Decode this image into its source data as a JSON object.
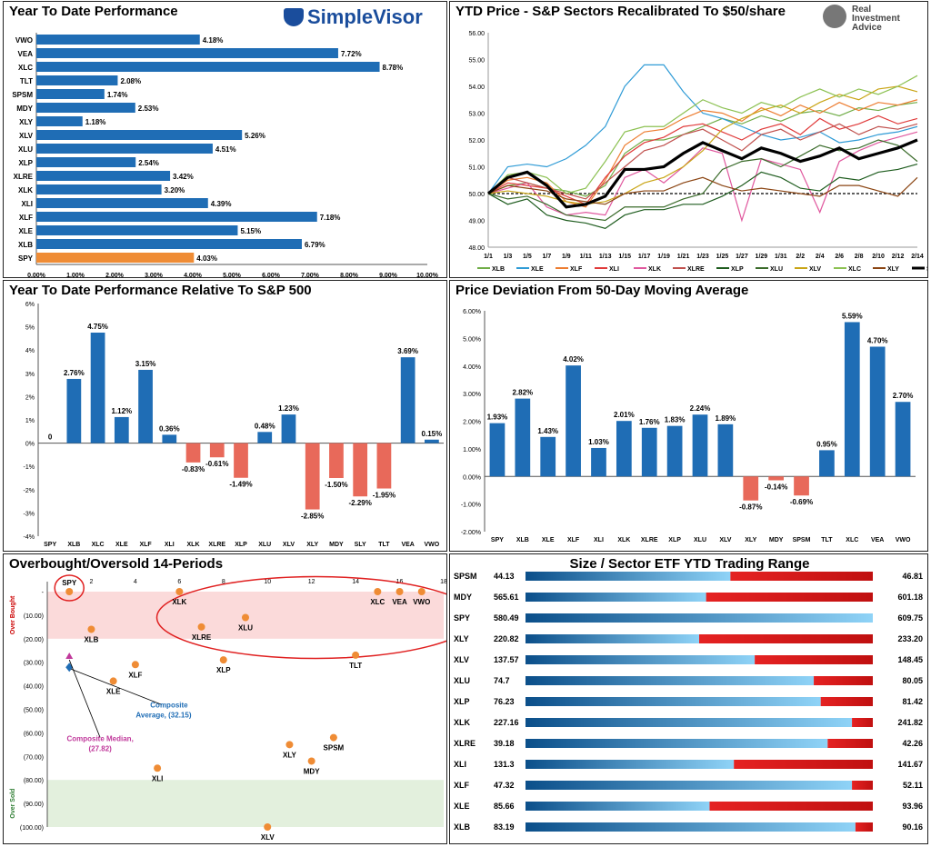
{
  "branding": {
    "simplevisor": "SimpleVisor",
    "ria": [
      "Real",
      "Investment",
      "Advice"
    ]
  },
  "chart_data": [
    {
      "id": "ytd",
      "type": "bar",
      "orientation": "horizontal",
      "title": "Year To Date Performance",
      "categories": [
        "VWO",
        "VEA",
        "XLC",
        "TLT",
        "SPSM",
        "MDY",
        "XLY",
        "XLV",
        "XLU",
        "XLP",
        "XLRE",
        "XLK",
        "XLI",
        "XLF",
        "XLE",
        "XLB",
        "SPY"
      ],
      "values": [
        4.18,
        7.72,
        8.78,
        2.08,
        1.74,
        2.53,
        1.18,
        5.26,
        4.51,
        2.54,
        3.42,
        3.2,
        4.39,
        7.18,
        5.15,
        6.79,
        4.03
      ],
      "labels": [
        "4.18%",
        "7.72%",
        "8.78%",
        "2.08%",
        "1.74%",
        "2.53%",
        "1.18%",
        "5.26%",
        "4.51%",
        "2.54%",
        "3.42%",
        "3.20%",
        "4.39%",
        "7.18%",
        "5.15%",
        "6.79%",
        "4.03%"
      ],
      "xlim": [
        0,
        10
      ],
      "ticks": [
        "0.00%",
        "1.00%",
        "2.00%",
        "3.00%",
        "4.00%",
        "5.00%",
        "6.00%",
        "7.00%",
        "8.00%",
        "9.00%",
        "10.00%"
      ],
      "colors": {
        "default": "#1f6db5",
        "SPY": "#ef8c35"
      }
    },
    {
      "id": "ytdprice",
      "type": "line",
      "title": "YTD Price - S&P Sectors Recalibrated To $50/share",
      "x": [
        "1/1",
        "1/3",
        "1/5",
        "1/7",
        "1/9",
        "1/11",
        "1/13",
        "1/15",
        "1/17",
        "1/19",
        "1/21",
        "1/23",
        "1/25",
        "1/27",
        "1/29",
        "1/31",
        "2/2",
        "2/4",
        "2/6",
        "2/8",
        "2/10",
        "2/12",
        "2/14"
      ],
      "ylim": [
        48,
        56
      ],
      "yticks": [
        "48.00",
        "49.00",
        "50.00",
        "51.00",
        "52.00",
        "53.00",
        "54.00",
        "55.00",
        "56.00"
      ],
      "baseline": 50,
      "series": [
        {
          "name": "XLB",
          "color": "#70ad47",
          "values": [
            50,
            50.3,
            50.4,
            50.2,
            50.1,
            49.9,
            50.3,
            51.5,
            52.0,
            52.0,
            52.2,
            52.5,
            52.8,
            52.6,
            52.9,
            52.7,
            53.0,
            53.1,
            52.9,
            53.2,
            53.1,
            53.3,
            53.4
          ]
        },
        {
          "name": "XLE",
          "color": "#2f9bd6",
          "values": [
            50,
            51.0,
            51.1,
            51.0,
            51.3,
            51.8,
            52.5,
            54.0,
            54.8,
            54.8,
            53.8,
            53.0,
            52.8,
            52.5,
            52.2,
            52.0,
            52.1,
            52.3,
            51.9,
            52.0,
            52.2,
            52.3,
            52.5
          ]
        },
        {
          "name": "XLF",
          "color": "#ed7d31",
          "values": [
            50,
            50.5,
            50.6,
            50.4,
            49.7,
            49.5,
            50.5,
            51.8,
            52.3,
            52.4,
            52.8,
            53.1,
            53.0,
            52.7,
            53.2,
            52.9,
            53.3,
            53.0,
            53.4,
            53.1,
            53.4,
            53.3,
            53.5
          ]
        },
        {
          "name": "XLI",
          "color": "#e03a3a",
          "values": [
            50,
            50.4,
            50.3,
            50.2,
            49.9,
            49.6,
            50.6,
            51.4,
            51.9,
            52.1,
            52.5,
            52.6,
            52.3,
            52.0,
            52.4,
            52.6,
            52.2,
            52.8,
            52.4,
            52.6,
            52.9,
            52.6,
            52.8
          ]
        },
        {
          "name": "XLK",
          "color": "#e0589e",
          "values": [
            50,
            50.2,
            50.4,
            49.5,
            49.2,
            49.3,
            49.2,
            50.6,
            50.9,
            50.4,
            51.0,
            51.7,
            51.5,
            49.0,
            51.3,
            51.1,
            50.9,
            49.3,
            51.2,
            51.6,
            51.9,
            52.1,
            52.3
          ]
        },
        {
          "name": "XLRE",
          "color": "#c0504d",
          "values": [
            50,
            50.6,
            50.4,
            50.2,
            50.0,
            49.8,
            50.4,
            51.0,
            51.6,
            51.8,
            52.2,
            52.4,
            52.0,
            51.6,
            52.2,
            52.4,
            52.0,
            52.3,
            52.6,
            52.2,
            52.5,
            52.4,
            52.6
          ]
        },
        {
          "name": "XLP",
          "color": "#1e5c1e",
          "values": [
            50,
            49.6,
            49.8,
            49.2,
            49.0,
            48.9,
            48.7,
            49.2,
            49.4,
            49.4,
            49.6,
            49.6,
            49.9,
            50.3,
            50.8,
            50.6,
            50.2,
            50.1,
            50.6,
            50.5,
            50.8,
            50.9,
            51.1
          ]
        },
        {
          "name": "XLU",
          "color": "#3a6b2a",
          "values": [
            50,
            49.8,
            49.9,
            49.6,
            49.2,
            49.1,
            49.0,
            49.5,
            49.5,
            49.5,
            49.8,
            50.0,
            50.9,
            51.2,
            51.3,
            51.0,
            51.4,
            51.8,
            51.6,
            51.7,
            52.0,
            51.8,
            51.2
          ]
        },
        {
          "name": "XLV",
          "color": "#c9a516",
          "values": [
            50,
            50.1,
            50.0,
            49.9,
            49.7,
            49.6,
            49.7,
            50.0,
            50.4,
            50.6,
            51.0,
            51.6,
            52.4,
            52.8,
            53.1,
            53.3,
            53.0,
            53.4,
            53.7,
            53.5,
            53.9,
            54.0,
            53.8
          ]
        },
        {
          "name": "XLC",
          "color": "#8cc152",
          "values": [
            50,
            50.7,
            50.8,
            50.6,
            50.0,
            50.2,
            51.2,
            52.3,
            52.5,
            52.5,
            53.0,
            53.5,
            53.2,
            53.0,
            53.4,
            53.2,
            53.6,
            53.9,
            53.6,
            53.9,
            53.7,
            54.0,
            54.4
          ]
        },
        {
          "name": "XLY",
          "color": "#8b4513",
          "values": [
            50,
            50.3,
            50.2,
            50.1,
            49.8,
            49.7,
            49.6,
            50.0,
            50.1,
            50.1,
            50.4,
            50.6,
            50.3,
            50.1,
            50.2,
            50.1,
            50.0,
            49.9,
            50.3,
            50.3,
            50.1,
            49.9,
            50.6
          ]
        },
        {
          "name": "SPY",
          "color": "#000000",
          "values": [
            50,
            50.6,
            50.8,
            50.3,
            49.5,
            49.6,
            49.9,
            50.9,
            50.9,
            51.0,
            51.5,
            51.9,
            51.6,
            51.3,
            51.7,
            51.5,
            51.2,
            51.4,
            51.7,
            51.3,
            51.5,
            51.7,
            52.0
          ]
        }
      ]
    },
    {
      "id": "relative",
      "type": "bar",
      "title": "Year To Date Performance Relative To S&P 500",
      "categories": [
        "SPY",
        "XLB",
        "XLC",
        "XLE",
        "XLF",
        "XLI",
        "XLK",
        "XLRE",
        "XLP",
        "XLU",
        "XLV",
        "XLY",
        "MDY",
        "SLY",
        "TLT",
        "VEA",
        "VWO"
      ],
      "values": [
        0,
        2.76,
        4.75,
        1.12,
        3.15,
        0.36,
        -0.83,
        -0.61,
        -1.49,
        0.48,
        1.23,
        -2.85,
        -1.5,
        -2.29,
        -1.95,
        3.69,
        0.15
      ],
      "labels": [
        "0",
        "2.76%",
        "4.75%",
        "1.12%",
        "3.15%",
        "0.36%",
        "-0.83%",
        "-0.61%",
        "-1.49%",
        "0.48%",
        "1.23%",
        "-2.85%",
        "-1.50%",
        "-2.29%",
        "-1.95%",
        "3.69%",
        "0.15%"
      ],
      "ylim": [
        -4,
        6
      ],
      "yticks": [
        "-4%",
        "-3%",
        "-2%",
        "-1%",
        "0%",
        "1%",
        "2%",
        "3%",
        "4%",
        "5%",
        "6%"
      ],
      "colors": {
        "positive": "#1f6db5",
        "negative": "#e8695a"
      }
    },
    {
      "id": "deviation",
      "type": "bar",
      "title": "Price Deviation From 50-Day Moving Average",
      "categories": [
        "SPY",
        "XLB",
        "XLE",
        "XLF",
        "XLI",
        "XLK",
        "XLRE",
        "XLP",
        "XLU",
        "XLV",
        "XLY",
        "MDY",
        "SPSM",
        "TLT",
        "XLC",
        "VEA",
        "VWO"
      ],
      "values": [
        1.93,
        2.82,
        1.43,
        4.02,
        1.03,
        2.01,
        1.76,
        1.83,
        2.24,
        1.89,
        -0.87,
        -0.14,
        -0.69,
        0.95,
        5.59,
        4.7,
        2.7
      ],
      "labels": [
        "1.93%",
        "2.82%",
        "1.43%",
        "4.02%",
        "1.03%",
        "2.01%",
        "1.76%",
        "1.83%",
        "2.24%",
        "1.89%",
        "-0.87%",
        "-0.14%",
        "-0.69%",
        "0.95%",
        "5.59%",
        "4.70%",
        "2.70%"
      ],
      "ylim": [
        -2,
        6
      ],
      "yticks": [
        "-2.00%",
        "-1.00%",
        "0.00%",
        "1.00%",
        "2.00%",
        "3.00%",
        "4.00%",
        "5.00%",
        "6.00%"
      ],
      "colors": {
        "positive": "#1f6db5",
        "negative": "#e8695a"
      }
    },
    {
      "id": "obos",
      "type": "scatter",
      "title": "Overbought/Oversold 14-Periods",
      "xlim": [
        0,
        18
      ],
      "xticks": [
        "2",
        "4",
        "6",
        "8",
        "10",
        "12",
        "14",
        "16",
        "18"
      ],
      "ylim": [
        -100,
        0
      ],
      "yticks": [
        "-",
        "(10.00)",
        "(20.00)",
        "(30.00)",
        "(40.00)",
        "(50.00)",
        "(60.00)",
        "(70.00)",
        "(80.00)",
        "(90.00)",
        "(100.00)"
      ],
      "ylabel_top": "Over Bought",
      "ylabel_bottom": "Over Sold",
      "points": [
        {
          "label": "SPY",
          "x": 1,
          "y": 0
        },
        {
          "label": "XLK",
          "x": 6,
          "y": 0
        },
        {
          "label": "XLC",
          "x": 15,
          "y": 0
        },
        {
          "label": "VEA",
          "x": 16,
          "y": 0
        },
        {
          "label": "VWO",
          "x": 17,
          "y": 0
        },
        {
          "label": "XLB",
          "x": 2,
          "y": -16
        },
        {
          "label": "XLRE",
          "x": 7,
          "y": -15
        },
        {
          "label": "XLU",
          "x": 9,
          "y": -11
        },
        {
          "label": "XLP",
          "x": 8,
          "y": -29
        },
        {
          "label": "TLT",
          "x": 14,
          "y": -27
        },
        {
          "label": "XLF",
          "x": 4,
          "y": -31
        },
        {
          "label": "XLE",
          "x": 3,
          "y": -38
        },
        {
          "label": "XLY",
          "x": 11,
          "y": -65
        },
        {
          "label": "SPSM",
          "x": 13,
          "y": -62
        },
        {
          "label": "MDY",
          "x": 12,
          "y": -72
        },
        {
          "label": "XLI",
          "x": 5,
          "y": -75
        },
        {
          "label": "XLV",
          "x": 10,
          "y": -100
        }
      ],
      "composite_average": {
        "label": "Composite Average, (32.15)",
        "value": -32.15
      },
      "composite_median": {
        "label": "Composite Median, (27.82)",
        "value": -27.82
      },
      "colors": {
        "point": "#ef8c35",
        "average": "#1f6db5",
        "median": "#c0399b",
        "circle": "#e02020",
        "overbought_band": "#fbdada",
        "oversold_band": "#e3f0dd"
      }
    },
    {
      "id": "range",
      "type": "table",
      "title": "Size / Sector ETF YTD Trading Range",
      "rows": [
        {
          "name": "SPSM",
          "low": "44.13",
          "high": "46.81",
          "position": 0.59
        },
        {
          "name": "MDY",
          "low": "565.61",
          "high": "601.18",
          "position": 0.52
        },
        {
          "name": "SPY",
          "low": "580.49",
          "high": "609.75",
          "position": 1.0
        },
        {
          "name": "XLY",
          "low": "220.82",
          "high": "233.20",
          "position": 0.5
        },
        {
          "name": "XLV",
          "low": "137.57",
          "high": "148.45",
          "position": 0.66
        },
        {
          "name": "XLU",
          "low": "74.7",
          "high": "80.05",
          "position": 0.83
        },
        {
          "name": "XLP",
          "low": "76.23",
          "high": "81.42",
          "position": 0.85
        },
        {
          "name": "XLK",
          "low": "227.16",
          "high": "241.82",
          "position": 0.94
        },
        {
          "name": "XLRE",
          "low": "39.18",
          "high": "42.26",
          "position": 0.87
        },
        {
          "name": "XLI",
          "low": "131.3",
          "high": "141.67",
          "position": 0.6
        },
        {
          "name": "XLF",
          "low": "47.32",
          "high": "52.11",
          "position": 0.94
        },
        {
          "name": "XLE",
          "low": "85.66",
          "high": "93.96",
          "position": 0.53
        },
        {
          "name": "XLB",
          "low": "83.19",
          "high": "90.16",
          "position": 0.95
        }
      ]
    }
  ]
}
